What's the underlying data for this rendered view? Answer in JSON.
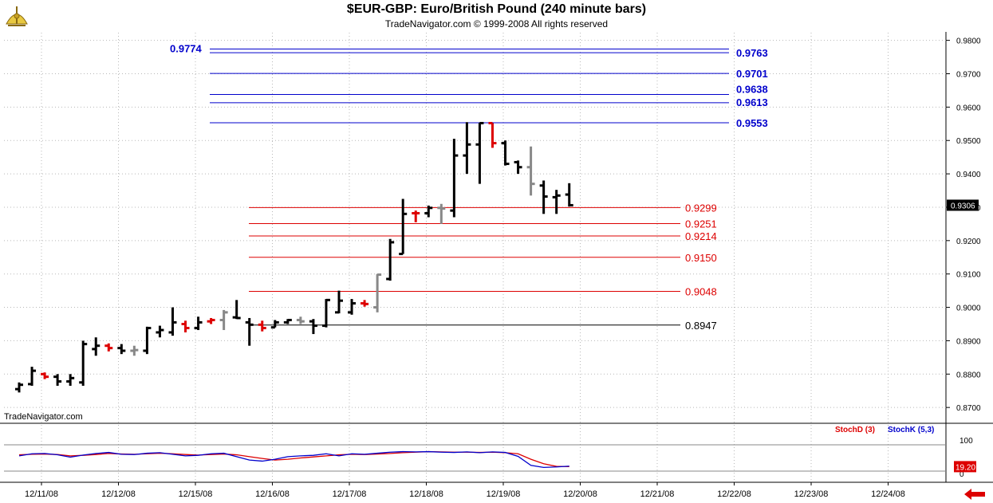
{
  "header": {
    "title": "$EUR-GBP:  Euro/British Pound  (240 minute bars)",
    "copyright": "TradeNavigator.com © 1999-2008 All rights reserved"
  },
  "watermark": "TradeNavigator.com",
  "indicator": {
    "stochd_label": "StochD (3)",
    "stochk_label": "StochK (5,3)",
    "axis_ticks": [
      "100",
      "0"
    ],
    "last_value_label": "19.20",
    "colors": {
      "stochd": "#dd0000",
      "stochk": "#0000cc"
    }
  },
  "nav": {
    "icon": "left-arrow-icon",
    "color": "#dd0000"
  },
  "chart_data": {
    "type": "bar",
    "title": "$EUR-GBP:  Euro/British Pound  (240 minute bars)",
    "price_axis": {
      "ylim": [
        0.8655,
        0.9823
      ],
      "ticks": [
        "0.9800",
        "0.9700",
        "0.9600",
        "0.9500",
        "0.9400",
        "0.9300",
        "0.9200",
        "0.9100",
        "0.9000",
        "0.8900",
        "0.8800",
        "0.8700"
      ],
      "last_price_label": "0.9306"
    },
    "x_axis": {
      "date_labels": [
        "12/11/08",
        "12/12/08",
        "12/15/08",
        "12/16/08",
        "12/17/08",
        "12/18/08",
        "12/19/08",
        "12/20/08",
        "12/21/08",
        "12/22/08",
        "12/23/08",
        "12/24/08"
      ]
    },
    "bar_colors": {
      "up": "#000000",
      "down": "#dd0000",
      "neutral": "#888888"
    },
    "ohlc": [
      {
        "o": 0.8755,
        "h": 0.8775,
        "l": 0.8745,
        "c": 0.8768,
        "k": "up"
      },
      {
        "o": 0.877,
        "h": 0.8822,
        "l": 0.8765,
        "c": 0.881,
        "k": "up"
      },
      {
        "o": 0.88,
        "h": 0.8805,
        "l": 0.8785,
        "c": 0.8792,
        "k": "down"
      },
      {
        "o": 0.8792,
        "h": 0.88,
        "l": 0.8765,
        "c": 0.8778,
        "k": "up"
      },
      {
        "o": 0.8778,
        "h": 0.88,
        "l": 0.8765,
        "c": 0.8788,
        "k": "up"
      },
      {
        "o": 0.8775,
        "h": 0.89,
        "l": 0.8765,
        "c": 0.889,
        "k": "up"
      },
      {
        "o": 0.8875,
        "h": 0.891,
        "l": 0.8855,
        "c": 0.8885,
        "k": "up"
      },
      {
        "o": 0.8885,
        "h": 0.8892,
        "l": 0.8868,
        "c": 0.8878,
        "k": "down"
      },
      {
        "o": 0.8878,
        "h": 0.889,
        "l": 0.886,
        "c": 0.887,
        "k": "up"
      },
      {
        "o": 0.887,
        "h": 0.8885,
        "l": 0.8855,
        "c": 0.8872,
        "k": "neutral"
      },
      {
        "o": 0.887,
        "h": 0.8942,
        "l": 0.886,
        "c": 0.8938,
        "k": "up"
      },
      {
        "o": 0.8925,
        "h": 0.8945,
        "l": 0.891,
        "c": 0.8932,
        "k": "up"
      },
      {
        "o": 0.8925,
        "h": 0.9,
        "l": 0.8915,
        "c": 0.8955,
        "k": "up"
      },
      {
        "o": 0.895,
        "h": 0.896,
        "l": 0.8925,
        "c": 0.8938,
        "k": "down"
      },
      {
        "o": 0.8938,
        "h": 0.8972,
        "l": 0.8932,
        "c": 0.8955,
        "k": "up"
      },
      {
        "o": 0.8958,
        "h": 0.8968,
        "l": 0.895,
        "c": 0.8962,
        "k": "down"
      },
      {
        "o": 0.8962,
        "h": 0.8992,
        "l": 0.8932,
        "c": 0.8985,
        "k": "neutral"
      },
      {
        "o": 0.897,
        "h": 0.9022,
        "l": 0.8965,
        "c": 0.8968,
        "k": "up"
      },
      {
        "o": 0.8955,
        "h": 0.8968,
        "l": 0.8885,
        "c": 0.8948,
        "k": "up"
      },
      {
        "o": 0.8948,
        "h": 0.896,
        "l": 0.8928,
        "c": 0.8938,
        "k": "down"
      },
      {
        "o": 0.894,
        "h": 0.8962,
        "l": 0.894,
        "c": 0.8955,
        "k": "up"
      },
      {
        "o": 0.8955,
        "h": 0.8965,
        "l": 0.895,
        "c": 0.8962,
        "k": "up"
      },
      {
        "o": 0.8962,
        "h": 0.8972,
        "l": 0.895,
        "c": 0.8958,
        "k": "neutral"
      },
      {
        "o": 0.8958,
        "h": 0.8965,
        "l": 0.892,
        "c": 0.8945,
        "k": "up"
      },
      {
        "o": 0.8945,
        "h": 0.9025,
        "l": 0.894,
        "c": 0.9022,
        "k": "up"
      },
      {
        "o": 0.8985,
        "h": 0.905,
        "l": 0.8982,
        "c": 0.902,
        "k": "up"
      },
      {
        "o": 0.8985,
        "h": 0.9025,
        "l": 0.8978,
        "c": 0.9012,
        "k": "up"
      },
      {
        "o": 0.9012,
        "h": 0.9022,
        "l": 0.9002,
        "c": 0.901,
        "k": "down"
      },
      {
        "o": 0.9,
        "h": 0.91,
        "l": 0.8985,
        "c": 0.9098,
        "k": "neutral"
      },
      {
        "o": 0.9085,
        "h": 0.9205,
        "l": 0.908,
        "c": 0.9195,
        "k": "up"
      },
      {
        "o": 0.916,
        "h": 0.9325,
        "l": 0.916,
        "c": 0.928,
        "k": "up"
      },
      {
        "o": 0.9282,
        "h": 0.929,
        "l": 0.9255,
        "c": 0.9282,
        "k": "down"
      },
      {
        "o": 0.9282,
        "h": 0.9305,
        "l": 0.927,
        "c": 0.9298,
        "k": "up"
      },
      {
        "o": 0.9298,
        "h": 0.931,
        "l": 0.925,
        "c": 0.9296,
        "k": "neutral"
      },
      {
        "o": 0.929,
        "h": 0.9505,
        "l": 0.927,
        "c": 0.9455,
        "k": "up"
      },
      {
        "o": 0.9455,
        "h": 0.9555,
        "l": 0.94,
        "c": 0.9488,
        "k": "up"
      },
      {
        "o": 0.9488,
        "h": 0.9553,
        "l": 0.937,
        "c": 0.9552,
        "k": "up"
      },
      {
        "o": 0.9552,
        "h": 0.9552,
        "l": 0.9478,
        "c": 0.9492,
        "k": "down"
      },
      {
        "o": 0.9492,
        "h": 0.95,
        "l": 0.9425,
        "c": 0.943,
        "k": "up"
      },
      {
        "o": 0.9435,
        "h": 0.944,
        "l": 0.94,
        "c": 0.942,
        "k": "up"
      },
      {
        "o": 0.942,
        "h": 0.9482,
        "l": 0.9335,
        "c": 0.937,
        "k": "neutral"
      },
      {
        "o": 0.9365,
        "h": 0.938,
        "l": 0.928,
        "c": 0.9332,
        "k": "up"
      },
      {
        "o": 0.933,
        "h": 0.9352,
        "l": 0.928,
        "c": 0.9335,
        "k": "up"
      },
      {
        "o": 0.9338,
        "h": 0.9372,
        "l": 0.9302,
        "c": 0.9306,
        "k": "up"
      }
    ],
    "blue_levels": {
      "color": "#0000cc",
      "lines": [
        {
          "value": 0.9774,
          "label": "0.9774"
        },
        {
          "value": 0.9763,
          "label": "0.9763"
        },
        {
          "value": 0.9701,
          "label": "0.9701"
        },
        {
          "value": 0.9638,
          "label": "0.9638"
        },
        {
          "value": 0.9613,
          "label": "0.9613"
        },
        {
          "value": 0.9553,
          "label": "0.9553"
        }
      ]
    },
    "red_levels": {
      "color": "#dd0000",
      "lines": [
        {
          "value": 0.9299,
          "label": "0.9299"
        },
        {
          "value": 0.9251,
          "label": "0.9251"
        },
        {
          "value": 0.9214,
          "label": "0.9214"
        },
        {
          "value": 0.915,
          "label": "0.9150"
        },
        {
          "value": 0.9048,
          "label": "0.9048"
        }
      ]
    },
    "black_level": {
      "value": 0.8947,
      "label": "0.8947",
      "color": "#000000"
    },
    "stochastics": {
      "stochd": [
        62,
        64,
        65,
        63,
        58,
        60,
        63,
        67,
        65,
        64,
        66,
        68,
        66,
        63,
        61,
        63,
        65,
        62,
        55,
        48,
        42,
        45,
        50,
        54,
        58,
        62,
        64,
        63,
        65,
        67,
        70,
        72,
        74,
        73,
        72,
        72,
        71,
        72,
        70,
        66,
        45,
        28,
        18,
        17
      ],
      "stochk": [
        58,
        66,
        67,
        62,
        53,
        61,
        67,
        71,
        64,
        63,
        68,
        70,
        64,
        58,
        60,
        66,
        68,
        55,
        42,
        38,
        45,
        55,
        58,
        60,
        66,
        58,
        66,
        64,
        68,
        72,
        74,
        73,
        74,
        72,
        71,
        73,
        70,
        73,
        71,
        56,
        22,
        14,
        16,
        19
      ]
    }
  }
}
